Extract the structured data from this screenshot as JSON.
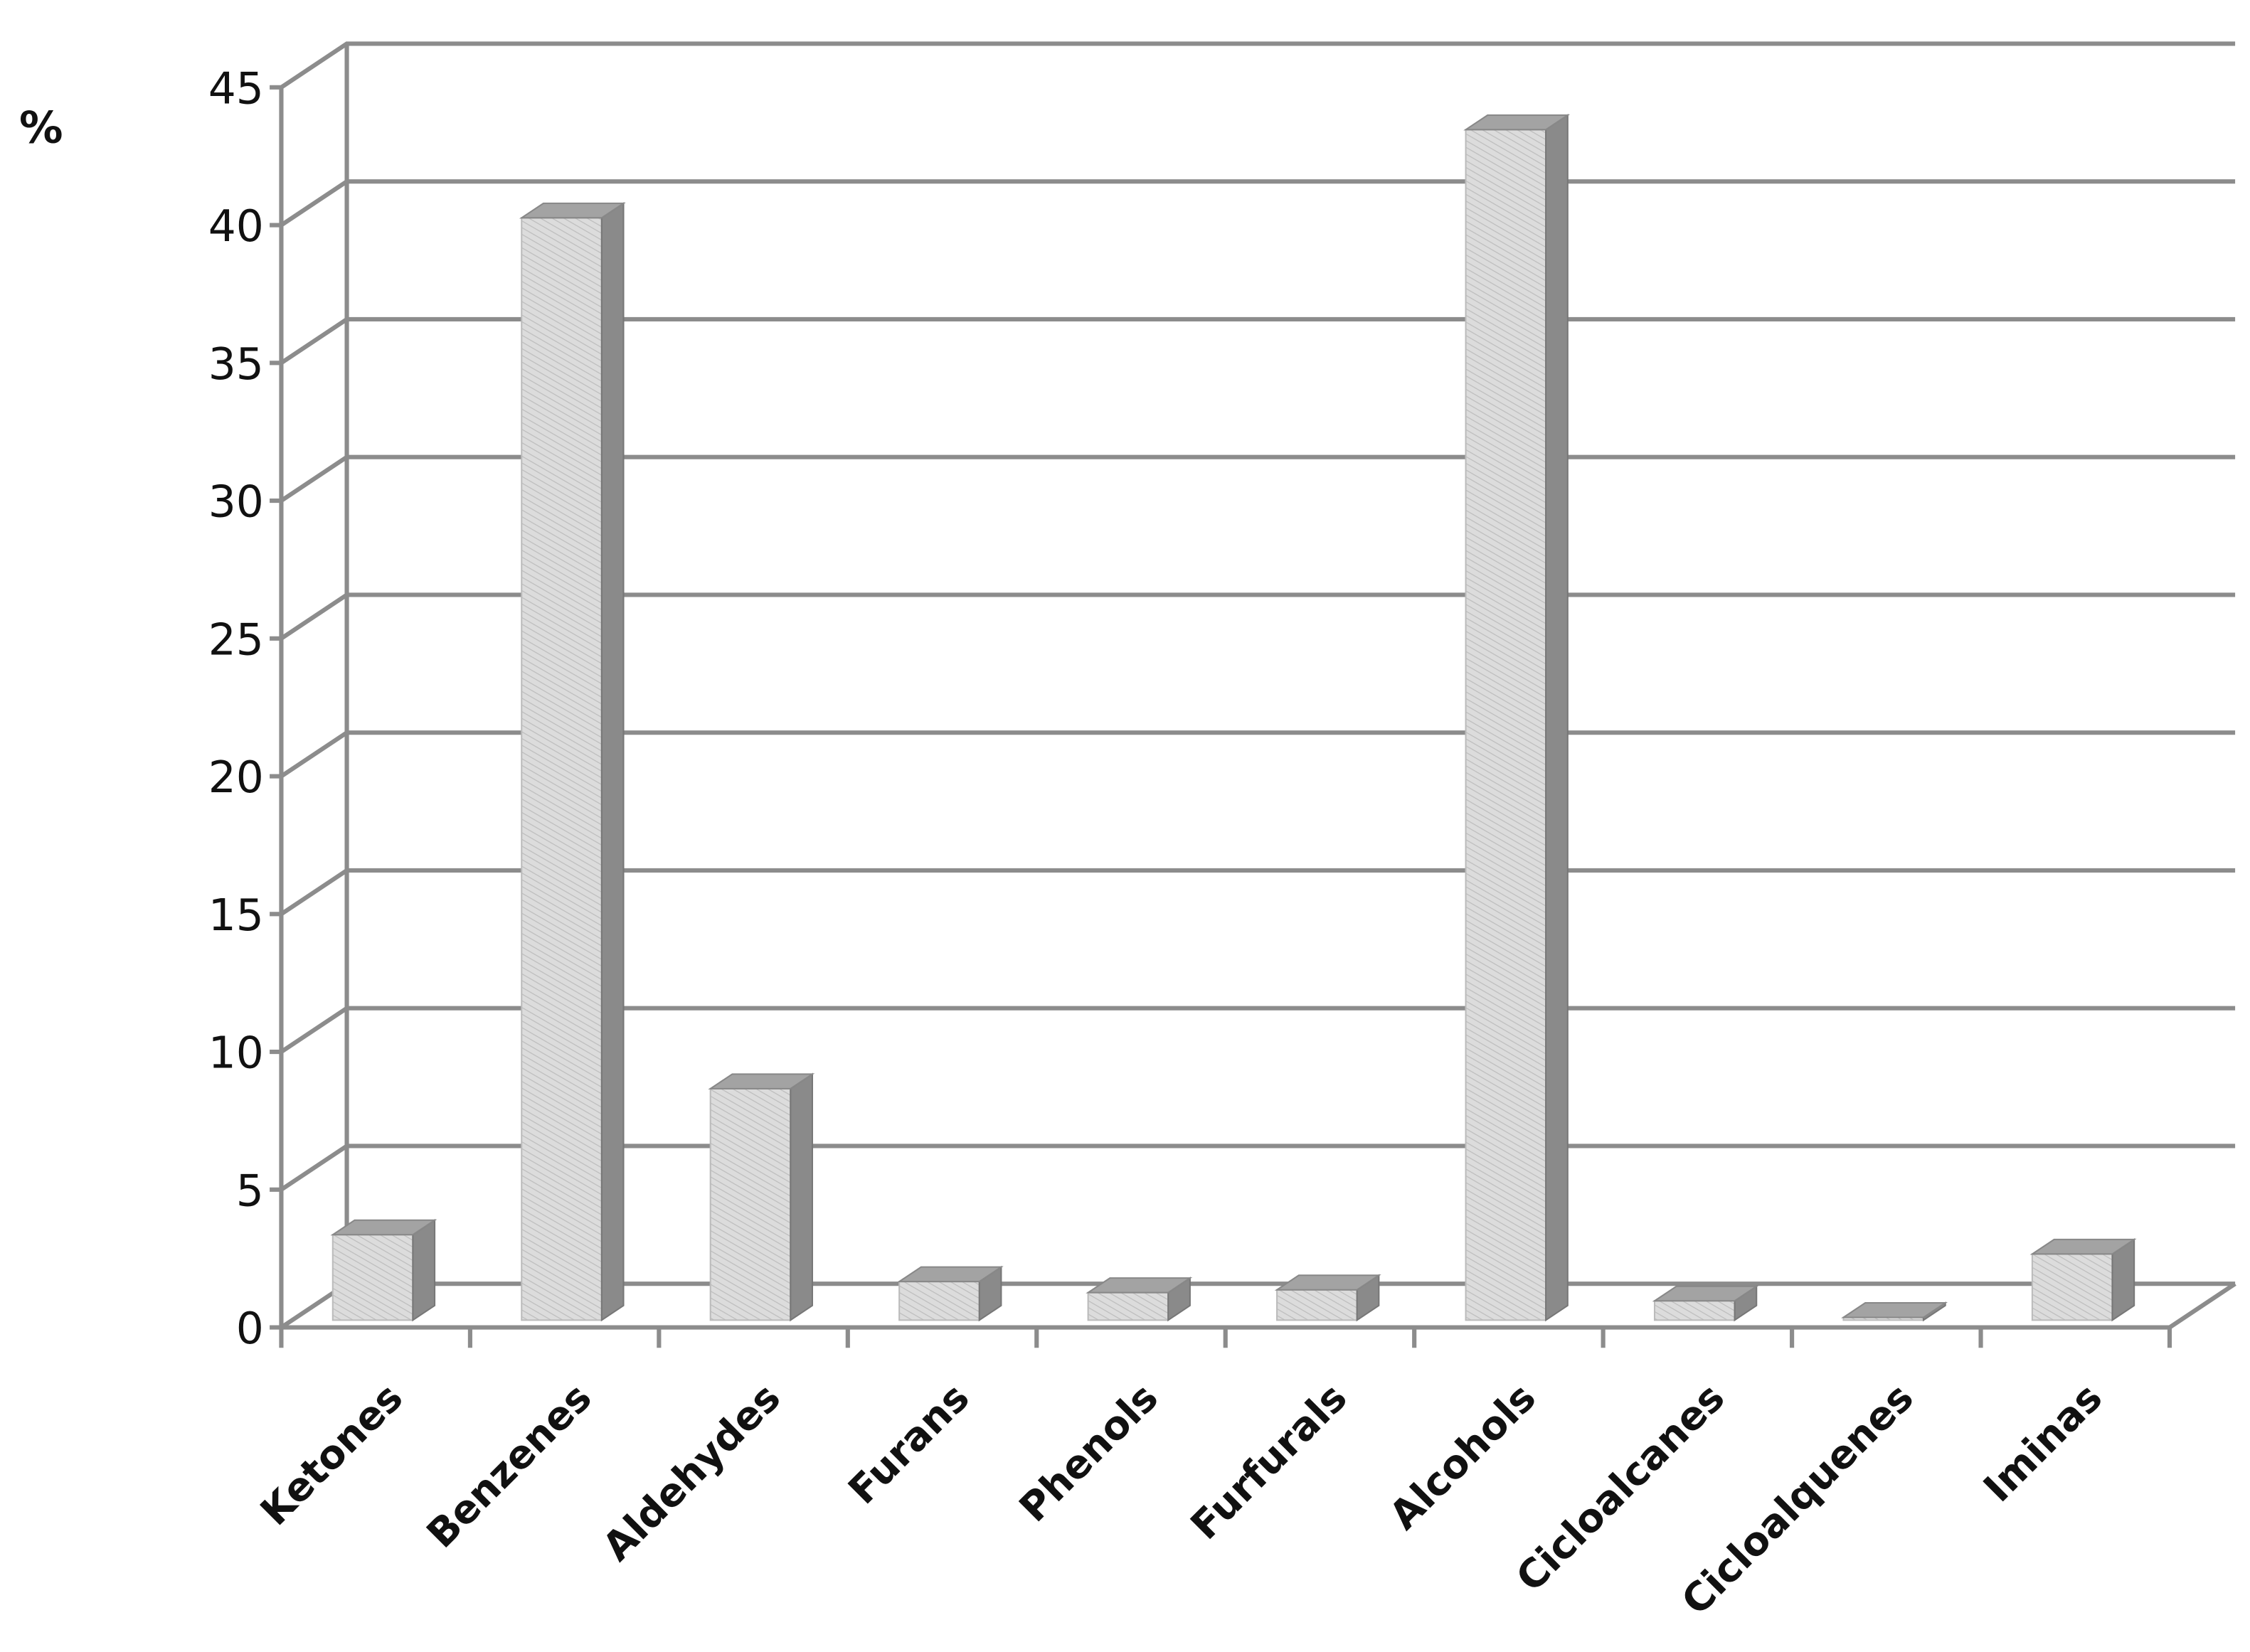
{
  "chart_data": {
    "type": "bar3d",
    "y_label": "%",
    "categories": [
      "Ketones",
      "Benzenes",
      "Aldehydes",
      "Furans",
      "Phenols",
      "Furfurals",
      "Alcohols",
      "Cicloalcanes",
      "Cicloalquenes",
      "Iminas"
    ],
    "values": [
      3.1,
      40,
      8.4,
      1.4,
      1.0,
      1.1,
      43.2,
      0.7,
      0.1,
      2.4
    ],
    "color": "#d9d9d9",
    "ylim": [
      0,
      45
    ],
    "yticks": [
      0,
      5,
      10,
      15,
      20,
      25,
      30,
      35,
      40,
      45
    ],
    "grid": true
  }
}
